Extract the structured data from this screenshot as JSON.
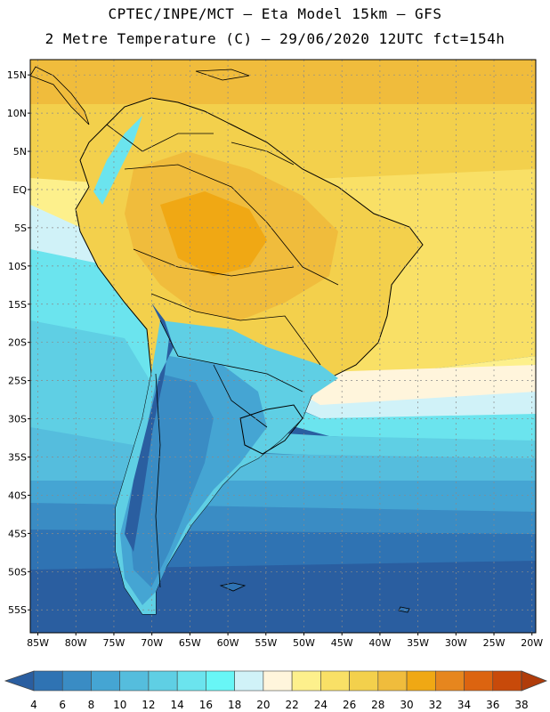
{
  "header": {
    "title_line1": "CPTEC/INPE/MCT –  Eta Model 15km – GFS",
    "title_line2": "2 Metre Temperature (C) – 29/06/2020 12UTC fct=154h"
  },
  "axes": {
    "lat_labels": [
      "15N",
      "10N",
      "5N",
      "EQ",
      "5S",
      "10S",
      "15S",
      "20S",
      "25S",
      "30S",
      "35S",
      "40S",
      "45S",
      "50S",
      "55S"
    ],
    "lat_values": [
      15,
      10,
      5,
      0,
      -5,
      -10,
      -15,
      -20,
      -25,
      -30,
      -35,
      -40,
      -45,
      -50,
      -55
    ],
    "lon_labels": [
      "85W",
      "80W",
      "75W",
      "70W",
      "65W",
      "60W",
      "55W",
      "50W",
      "45W",
      "40W",
      "35W",
      "30W",
      "25W",
      "20W"
    ],
    "lon_values": [
      -85,
      -80,
      -75,
      -70,
      -65,
      -60,
      -55,
      -50,
      -45,
      -40,
      -35,
      -30,
      -25,
      -20
    ],
    "lon_range": [
      -86,
      -19.5
    ],
    "lat_range": [
      17,
      -58
    ]
  },
  "colorbar": {
    "labels": [
      "4",
      "6",
      "8",
      "10",
      "12",
      "14",
      "16",
      "18",
      "20",
      "22",
      "24",
      "26",
      "28",
      "30",
      "32",
      "34",
      "36",
      "38"
    ],
    "colors": [
      "#2a5ea0",
      "#2f73b3",
      "#3a8cc4",
      "#45a5d3",
      "#55bddd",
      "#5fcfe4",
      "#6be4ee",
      "#68f6f6",
      "#d0f2f8",
      "#fff5dc",
      "#fdf08c",
      "#f9e066",
      "#f3d04c",
      "#f0bc3c",
      "#f0a814",
      "#e6861e",
      "#dc6410",
      "#c84a0a",
      "#b03c0a"
    ]
  }
}
